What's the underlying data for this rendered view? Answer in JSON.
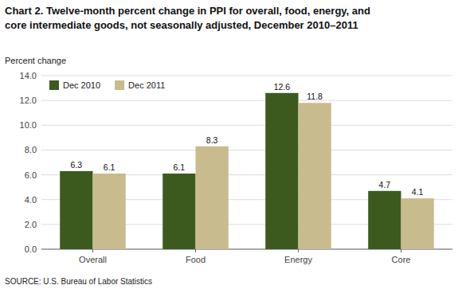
{
  "chart_data": {
    "type": "bar",
    "title": [
      "Chart 2.  Twelve-month percent change in PPI for overall, food, energy, and",
      "core intermediate goods, not seasonally adjusted, December 2010–2011"
    ],
    "y_label": "Percent change",
    "source": "SOURCE: U.S. Bureau of Labor Statistics",
    "categories": [
      "Overall",
      "Food",
      "Energy",
      "Core"
    ],
    "series": [
      {
        "name": "Dec 2010",
        "color": "#3d5a1e",
        "values": [
          6.3,
          6.1,
          12.6,
          4.7
        ]
      },
      {
        "name": "Dec 2011",
        "color": "#c8bc8e",
        "values": [
          6.1,
          8.3,
          11.8,
          4.1
        ]
      }
    ],
    "ylim": [
      0,
      14.0
    ],
    "yticks": [
      {
        "value": 0,
        "label": "0.0"
      },
      {
        "value": 2,
        "label": "2.0"
      },
      {
        "value": 4,
        "label": "4.0"
      },
      {
        "value": 6,
        "label": "6.0"
      },
      {
        "value": 8,
        "label": "8.0"
      },
      {
        "value": 10,
        "label": "10.0"
      },
      {
        "value": 12,
        "label": "12.0"
      },
      {
        "value": 14,
        "label": "14.0"
      }
    ],
    "grid": true,
    "legend": "upper left",
    "data_labels": true
  }
}
